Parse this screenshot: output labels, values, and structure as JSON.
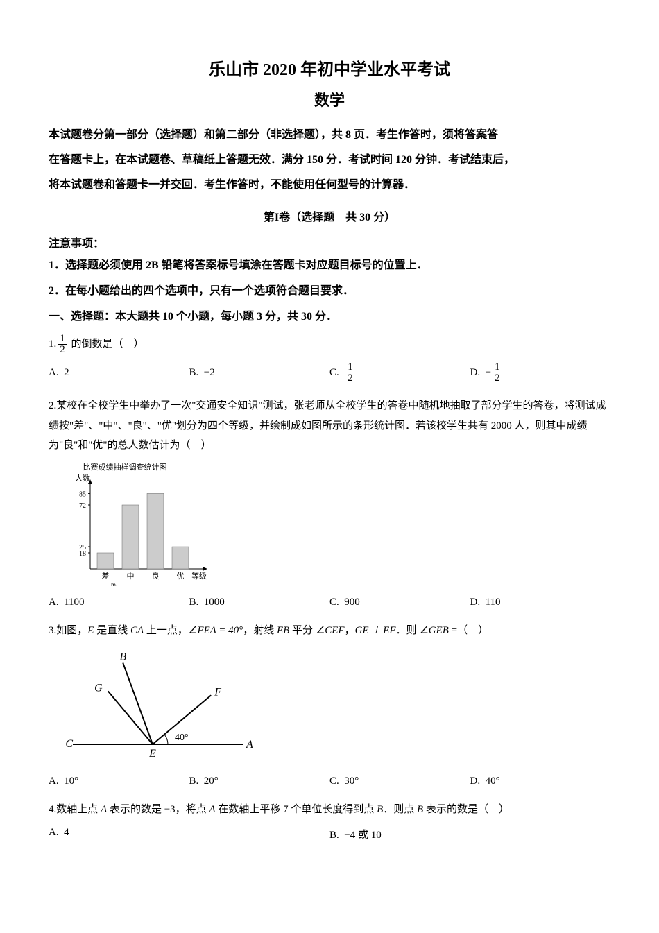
{
  "header": {
    "title_line1": "乐山市 2020 年初中学业水平考试",
    "title_line2": "数学",
    "instructions": [
      "本试题卷分第一部分（选择题）和第二部分（非选择题），共 8 页．考生作答时，须将答案答",
      "在答题卡上，在本试题卷、草稿纸上答题无效．满分 150 分．考试时间 120 分钟．考试结束后，",
      "将本试题卷和答题卡一并交回．考生作答时，不能使用任何型号的计算器．"
    ],
    "part1_title": "第I卷（选择题　共 30 分）",
    "notice_label": "注意事项：",
    "notices": [
      "1．选择题必须使用 2B 铅笔将答案标号填涂在答题卡对应题目标号的位置上．",
      "2．在每小题给出的四个选项中，只有一个选项符合题目要求．"
    ],
    "section1_title": "一、选择题：本大题共 10 个小题，每小题 3 分，共 30 分．"
  },
  "q1": {
    "prefix": "1.",
    "frac_num": "1",
    "frac_den": "2",
    "suffix": " 的倒数是（　）",
    "opts": {
      "A": "2",
      "B": "−2",
      "C_num": "1",
      "C_den": "2",
      "D_num": "1",
      "D_den": "2"
    }
  },
  "q2": {
    "text": "2.某校在全校学生中举办了一次\"交通安全知识\"测试，张老师从全校学生的答卷中随机地抽取了部分学生的答卷，将测试成绩按\"差\"、\"中\"、\"良\"、\"优\"划分为四个等级，并绘制成如图所示的条形统计图．若该校学生共有 2000 人，则其中成绩为\"良\"和\"优\"的总人数估计为（　）",
    "chart": {
      "title": "比赛成绩抽样调查统计图",
      "ylabel": "人数",
      "xlabel": "等级",
      "categories": [
        "差",
        "中",
        "良",
        "优"
      ],
      "values": [
        18,
        72,
        85,
        25
      ],
      "ytick_labels": [
        "18",
        "25",
        "72",
        "85"
      ],
      "bar_color": "#cccccc",
      "axis_color": "#000000"
    },
    "opts": {
      "A": "1100",
      "B": "1000",
      "C": "900",
      "D": "110"
    }
  },
  "q3": {
    "text_parts": {
      "p1": "3.如图，",
      "p2": " 是直线 ",
      "p3": " 上一点，",
      "p4": "∠FEA = 40°",
      "p5": "，射线 ",
      "p6": " 平分 ",
      "p7": "∠CEF",
      "p8": "，",
      "p9": "GE ⊥ EF",
      "p10": "．则 ",
      "p11": "∠GEB",
      "p12": " =（　）"
    },
    "E": "E",
    "CA": "CA",
    "EB": "EB",
    "figure": {
      "labels": {
        "A": "A",
        "B": "B",
        "C": "C",
        "E": "E",
        "F": "F",
        "G": "G",
        "angle": "40°"
      },
      "line_color": "#000000",
      "line_width": 2
    },
    "opts": {
      "A": "10°",
      "B": "20°",
      "C": "30°",
      "D": "40°"
    }
  },
  "q4": {
    "text_parts": {
      "p1": "4.数轴上点 ",
      "p2": " 表示的数是 −3，将点 ",
      "p3": " 在数轴上平移 7 个单位长度得到点 ",
      "p4": "．则点 ",
      "p5": " 表示的数是（　）"
    },
    "A": "A",
    "B": "B",
    "opts": {
      "A": "4",
      "B": "−4 或 10"
    }
  }
}
